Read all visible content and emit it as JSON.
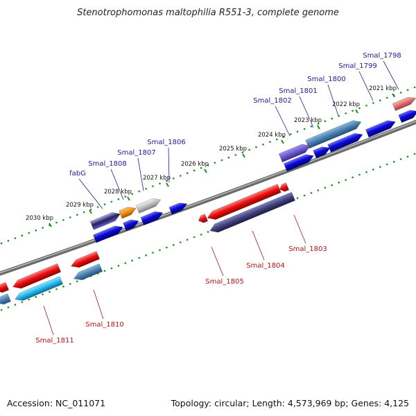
{
  "title": "Stenotrophomonas maltophilia R551-3, complete genome",
  "footer": {
    "accession": "Accession: NC_011071",
    "topology": "Topology: circular; Length: 4,573,969 bp; Genes: 4,125"
  },
  "colors": {
    "backbone": "#7a7a7a",
    "tick_dots": "#1e8a1e",
    "forward_gene": "#0a0ad8",
    "reverse_gene": "#ee1010",
    "forward_label": "#1a1aa8",
    "reverse_label": "#c01010",
    "gene_purple": "#6a5acd",
    "gene_steel": "#4a7fb0",
    "gene_orange": "#f09010",
    "gene_gray": "#c0c0c0",
    "gene_cyan": "#20b8ee",
    "gene_navy": "#40407a",
    "gene_pink": "#e07070"
  },
  "ticks": [
    {
      "label": "2021 kbp"
    },
    {
      "label": "2022 kbp"
    },
    {
      "label": "2023 kbp"
    },
    {
      "label": "2024 kbp"
    },
    {
      "label": "2025 kbp"
    },
    {
      "label": "2026 kbp"
    },
    {
      "label": "2027 kbp"
    },
    {
      "label": "2028 kbp"
    },
    {
      "label": "2029 kbp"
    },
    {
      "label": "2030 kbp"
    }
  ],
  "forward_labels": [
    {
      "text": "Smal_1798"
    },
    {
      "text": "Smal_1799"
    },
    {
      "text": "Smal_1800"
    },
    {
      "text": "Smal_1801"
    },
    {
      "text": "Smal_1802"
    },
    {
      "text": "Smal_1806"
    },
    {
      "text": "Smal_1807"
    },
    {
      "text": "Smal_1808"
    },
    {
      "text": "fabG"
    }
  ],
  "reverse_labels": [
    {
      "text": "Smal_1803"
    },
    {
      "text": "Smal_1804"
    },
    {
      "text": "Smal_1805"
    },
    {
      "text": "Smal_1810"
    },
    {
      "text": "Smal_1811"
    }
  ]
}
